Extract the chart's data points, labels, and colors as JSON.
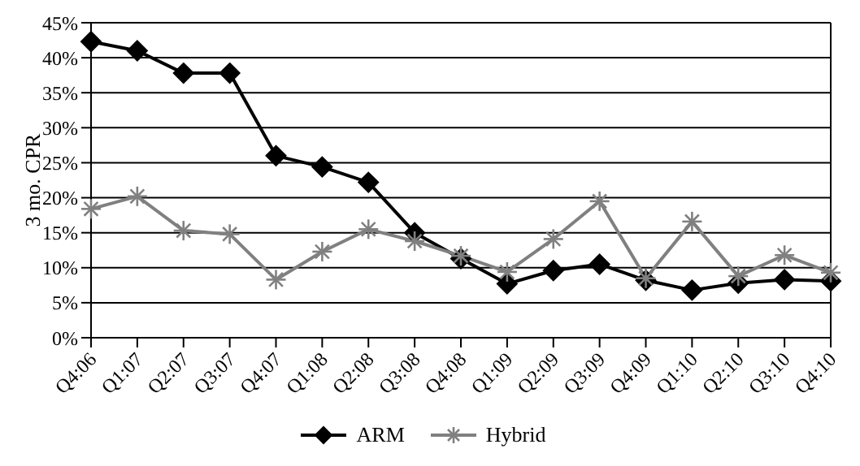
{
  "chart_data": {
    "type": "line",
    "ylabel": "3 mo. CPR",
    "categories": [
      "Q4:06",
      "Q1:07",
      "Q2:07",
      "Q3:07",
      "Q4:07",
      "Q1:08",
      "Q2:08",
      "Q3:08",
      "Q4:08",
      "Q1:09",
      "Q2:09",
      "Q3:09",
      "Q4:09",
      "Q1:10",
      "Q2:10",
      "Q3:10",
      "Q4:10"
    ],
    "series": [
      {
        "name": "ARM",
        "color": "#000000",
        "marker": "diamond",
        "values": [
          42.3,
          41,
          37.8,
          37.8,
          26,
          24.4,
          22.2,
          15,
          11.3,
          7.7,
          9.6,
          10.5,
          8.2,
          6.8,
          7.8,
          8.3,
          8.1
        ]
      },
      {
        "name": "Hybrid",
        "color": "#808080",
        "marker": "cross",
        "values": [
          18.4,
          20.2,
          15.3,
          14.8,
          8.3,
          12.3,
          15.5,
          13.8,
          11.7,
          9.4,
          14.1,
          19.5,
          8.5,
          16.6,
          8.8,
          11.8,
          9.3
        ]
      }
    ],
    "ylim": [
      0,
      45
    ],
    "yticks": [
      {
        "value": 0,
        "label": "0%"
      },
      {
        "value": 5,
        "label": "5%"
      },
      {
        "value": 10,
        "label": "10%"
      },
      {
        "value": 15,
        "label": "15%"
      },
      {
        "value": 20,
        "label": "20%"
      },
      {
        "value": 25,
        "label": "25%"
      },
      {
        "value": 30,
        "label": "30%"
      },
      {
        "value": 35,
        "label": "35%"
      },
      {
        "value": 40,
        "label": "40%"
      },
      {
        "value": 45,
        "label": "45%"
      }
    ],
    "grid": "y",
    "legend": "bottom"
  }
}
